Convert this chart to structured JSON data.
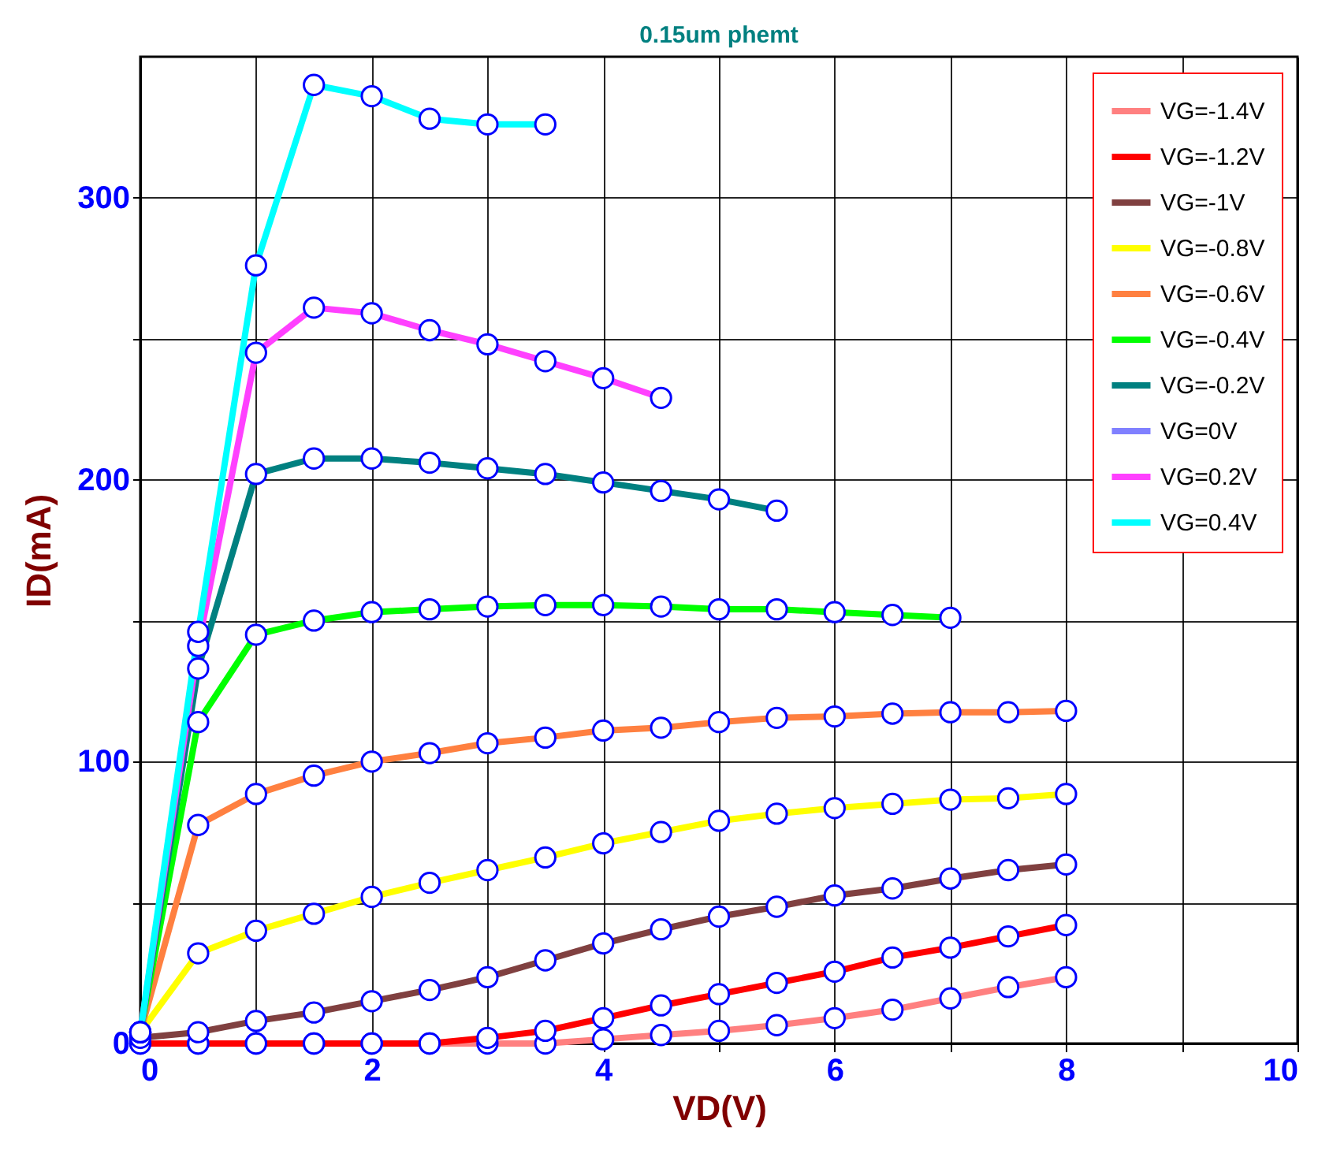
{
  "chart_data": {
    "type": "line",
    "title": "0.15um phemt",
    "xlabel": "VD(V)",
    "ylabel": "ID(mA)",
    "x": [
      0,
      0.5,
      1,
      1.5,
      2,
      2.5,
      3,
      3.5,
      4,
      4.5,
      5,
      5.5,
      6,
      6.5,
      7,
      7.5,
      8
    ],
    "xlim": [
      0,
      10
    ],
    "xticks": [
      0,
      {
        "value": 1,
        "label": null
      },
      2,
      {
        "value": 3,
        "label": null
      },
      4,
      {
        "value": 5,
        "label": null
      },
      6,
      {
        "value": 7,
        "label": null
      },
      8,
      {
        "value": 9,
        "label": null
      },
      10
    ],
    "ylim": [
      0,
      350
    ],
    "yticks": [
      0,
      {
        "value": 50,
        "label": null
      },
      100,
      {
        "value": 150,
        "label": null
      },
      200,
      {
        "value": 250,
        "label": null
      },
      300
    ],
    "grid": true,
    "legend": "top right",
    "marker": "circle",
    "line_style": "solid",
    "series": [
      {
        "name": "VG=-1.4V",
        "color": "#ff8080",
        "values": [
          0,
          0,
          0,
          0,
          0,
          0,
          0,
          0,
          1.5,
          3,
          4.5,
          6.5,
          9,
          12,
          16,
          20,
          23.5
        ]
      },
      {
        "name": "VG=-1.2V",
        "color": "#ff0000",
        "values": [
          0,
          0,
          0,
          0,
          0,
          0,
          2,
          4.5,
          9,
          13.5,
          17.5,
          21.5,
          25.5,
          30.5,
          34,
          38,
          42
        ]
      },
      {
        "name": "VG=-1V",
        "color": "#804040",
        "values": [
          2,
          4,
          8,
          11,
          15,
          19,
          23.5,
          29.5,
          35.5,
          40.5,
          45,
          48.5,
          52.5,
          55,
          58.5,
          61.5,
          63.5
        ]
      },
      {
        "name": "VG=-0.8V",
        "color": "#ffff00",
        "values": [
          4,
          32,
          40,
          46,
          52,
          57,
          61.5,
          66,
          71,
          75,
          79,
          81.5,
          83.5,
          85,
          86.5,
          87,
          88.5
        ]
      },
      {
        "name": "VG=-0.6V",
        "color": "#ff8040",
        "values": [
          4,
          77.5,
          88.5,
          95,
          100,
          103,
          106.5,
          108.5,
          111,
          112,
          114,
          115.5,
          116,
          117,
          117.5,
          117.5,
          118
        ]
      },
      {
        "name": "VG=-0.4V",
        "color": "#00ff00",
        "values": [
          4,
          114,
          145,
          150,
          153,
          154,
          155,
          155.5,
          155.5,
          155,
          154,
          154,
          153,
          152,
          151,
          null,
          null
        ]
      },
      {
        "name": "VG=-0.2V",
        "color": "#008080",
        "values": [
          4,
          133,
          202,
          207.5,
          207.5,
          206,
          204,
          202,
          199,
          196,
          193,
          189,
          null,
          null,
          null,
          null,
          null
        ]
      },
      {
        "name": "VG=0V",
        "color": "#8080ff",
        "values": [
          null,
          null,
          null,
          null,
          null,
          null,
          null,
          null,
          null,
          null,
          null,
          null,
          null,
          null,
          null,
          null,
          null
        ]
      },
      {
        "name": "VG=0.2V",
        "color": "#ff40ff",
        "values": [
          4,
          141,
          245,
          261,
          259,
          253,
          248,
          242,
          236,
          229,
          null,
          null,
          null,
          null,
          null,
          null,
          null
        ]
      },
      {
        "name": "VG=0.4V",
        "color": "#00ffff",
        "values": [
          4,
          146,
          276,
          340,
          336,
          328,
          326,
          326,
          null,
          null,
          null,
          null,
          null,
          null,
          null,
          null,
          null
        ]
      }
    ]
  }
}
